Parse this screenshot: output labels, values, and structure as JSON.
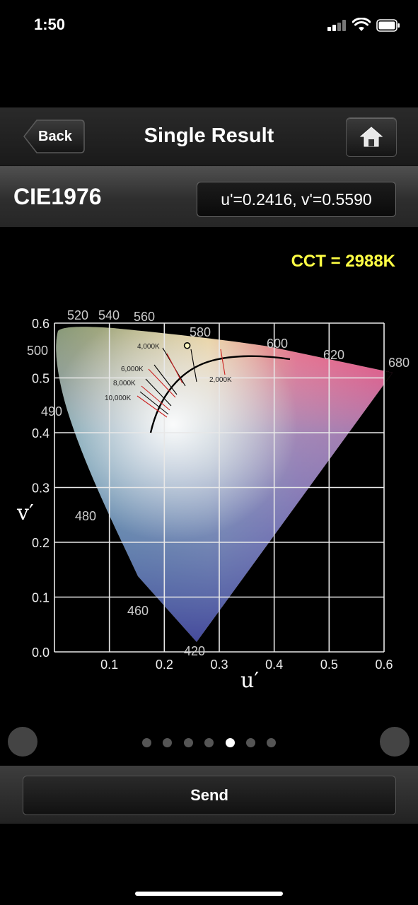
{
  "status_bar": {
    "time": "1:50"
  },
  "nav": {
    "back_label": "Back",
    "title": "Single Result",
    "home_icon": "home-icon"
  },
  "section": {
    "title": "CIE1976",
    "coordinates": "u'=0.2416, v'=0.5590"
  },
  "cct_text": "CCT = 2988K",
  "chart_data": {
    "type": "scatter",
    "xlabel": "u′",
    "ylabel": "v′",
    "xlim": [
      0.0,
      0.6
    ],
    "ylim": [
      0.0,
      0.6
    ],
    "x_ticks": [
      "0.1",
      "0.2",
      "0.3",
      "0.4",
      "0.5",
      "0.6"
    ],
    "y_ticks": [
      "0.0",
      "0.1",
      "0.2",
      "0.3",
      "0.4",
      "0.5",
      "0.6"
    ],
    "grid": true,
    "wavelength_labels": [
      "520",
      "540",
      "560",
      "580",
      "600",
      "620",
      "680",
      "500",
      "490",
      "480",
      "460",
      "420"
    ],
    "cct_labels": [
      "4,000K",
      "6,000K",
      "8,000K",
      "10,000K",
      "2,000K"
    ],
    "point": {
      "u": 0.2416,
      "v": 0.559
    },
    "locus_color": "#000000"
  },
  "pager": {
    "count": 7,
    "active_index": 4
  },
  "send_label": "Send"
}
